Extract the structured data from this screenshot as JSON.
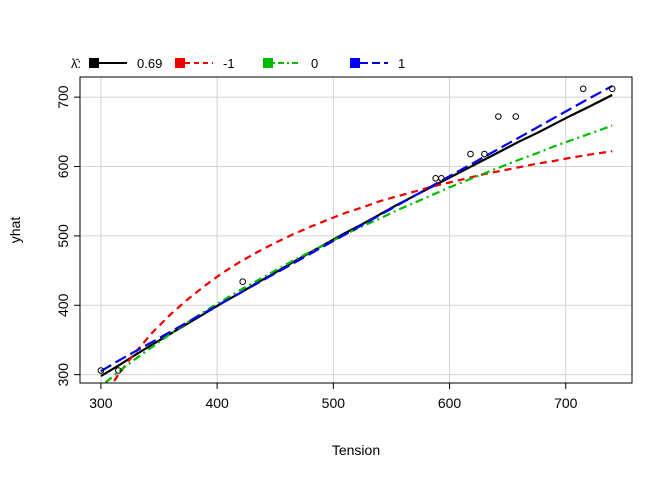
{
  "chart_data": {
    "type": "line",
    "xlabel": "Tension",
    "ylabel": "yhat",
    "xlim": [
      282,
      757
    ],
    "ylim": [
      288,
      729
    ],
    "xticks": [
      300,
      400,
      500,
      600,
      700
    ],
    "yticks": [
      300,
      400,
      500,
      600,
      700
    ],
    "x_tick_labels": [
      "300",
      "400",
      "500",
      "600",
      "700"
    ],
    "y_tick_labels": [
      "300",
      "400",
      "500",
      "600",
      "700"
    ],
    "grid": true,
    "legend": {
      "title": "λ̂:",
      "placement": "top-left, outside plot, horizontal"
    },
    "series": [
      {
        "name": "0.69",
        "color": "#000000",
        "dash": "solid",
        "x": [
          300,
          315,
          330,
          345,
          360,
          375,
          390,
          405,
          420,
          435,
          450,
          465,
          480,
          495,
          510,
          525,
          540,
          555,
          570,
          585,
          600,
          615,
          630,
          645,
          660,
          675,
          690,
          705,
          720,
          740
        ],
        "y": [
          298,
          313,
          329,
          344,
          359,
          374,
          389,
          404,
          418,
          433,
          447,
          462,
          476,
          490,
          504,
          517,
          531,
          545,
          558,
          571,
          584,
          597,
          610,
          623,
          636,
          648,
          661,
          674,
          686,
          703
        ]
      },
      {
        "name": "-1",
        "color": "#ee0000",
        "dash": "dashed",
        "x": [
          300,
          315,
          330,
          345,
          360,
          375,
          390,
          405,
          420,
          435,
          450,
          465,
          480,
          495,
          510,
          525,
          540,
          555,
          570,
          585,
          600,
          615,
          630,
          645,
          660,
          675,
          690,
          705,
          720,
          740
        ],
        "y": [
          262,
          300,
          333,
          362,
          387,
          409,
          429,
          447,
          463,
          477,
          490,
          502,
          513,
          523,
          533,
          541,
          550,
          557,
          564,
          571,
          577,
          583,
          589,
          594,
          599,
          604,
          608,
          613,
          617,
          622
        ]
      },
      {
        "name": "0",
        "color": "#00bb00",
        "dash": "dotdash",
        "x": [
          300,
          315,
          330,
          345,
          360,
          375,
          390,
          405,
          420,
          435,
          450,
          465,
          480,
          495,
          510,
          525,
          540,
          555,
          570,
          585,
          600,
          615,
          630,
          645,
          660,
          675,
          690,
          705,
          720,
          740
        ],
        "y": [
          283,
          304,
          323,
          341,
          359,
          376,
          392,
          407,
          422,
          436,
          450,
          464,
          477,
          489,
          502,
          514,
          525,
          537,
          548,
          559,
          570,
          580,
          590,
          600,
          610,
          619,
          629,
          638,
          647,
          659
        ]
      },
      {
        "name": "1",
        "color": "#0000ee",
        "dash": "longdash",
        "x": [
          300,
          315,
          330,
          345,
          360,
          375,
          390,
          405,
          420,
          435,
          450,
          465,
          480,
          495,
          510,
          525,
          540,
          555,
          570,
          585,
          600,
          615,
          630,
          645,
          660,
          675,
          690,
          705,
          720,
          740
        ],
        "y": [
          305,
          320,
          334,
          348,
          362,
          376,
          390,
          404,
          418,
          432,
          446,
          460,
          474,
          488,
          502,
          516,
          530,
          544,
          558,
          572,
          586,
          600,
          614,
          628,
          642,
          656,
          670,
          684,
          698,
          716
        ]
      }
    ],
    "points": {
      "x": [
        300,
        315,
        422,
        588,
        593,
        618,
        630,
        642,
        657,
        715,
        740
      ],
      "y": [
        306,
        306,
        434,
        583,
        583,
        618,
        618,
        672,
        672,
        712,
        712
      ]
    }
  }
}
